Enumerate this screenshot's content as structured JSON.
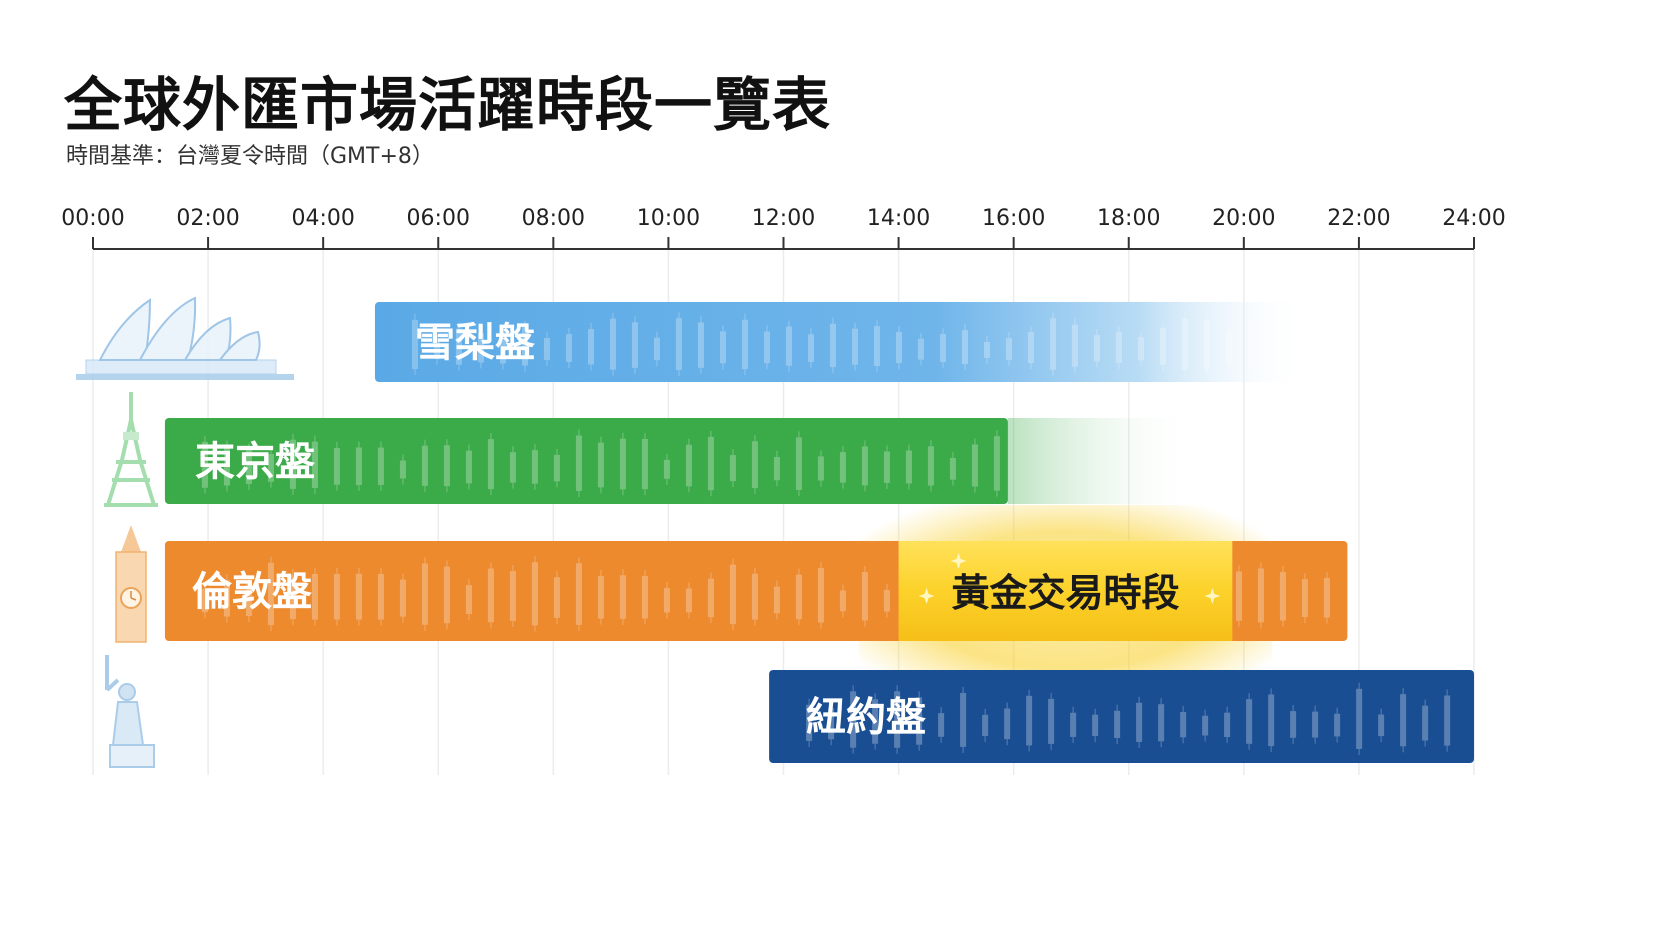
{
  "page": {
    "title": "全球外匯市場活躍時段一覽表",
    "subtitle": "時間基準：台灣夏令時間（GMT+8）"
  },
  "chart_data": {
    "type": "bar",
    "orientation": "horizontal-range",
    "title": "全球外匯市場活躍時段一覽表",
    "subtitle": "時間基準：台灣夏令時間（GMT+8）",
    "xlim": [
      0,
      24
    ],
    "x_ticks": [
      "00:00",
      "02:00",
      "04:00",
      "06:00",
      "08:00",
      "10:00",
      "12:00",
      "14:00",
      "16:00",
      "18:00",
      "20:00",
      "22:00",
      "24:00"
    ],
    "grid": true,
    "series": [
      {
        "name": "雪梨盤",
        "start": 4.9,
        "end": 21.1,
        "color": "#5aa9e6",
        "icon": "sydney-opera-house-icon"
      },
      {
        "name": "東京盤",
        "start": 1.25,
        "end": 15.9,
        "color": "#3bab4a",
        "icon": "tokyo-tower-icon"
      },
      {
        "name": "倫敦盤",
        "start": 1.25,
        "end": 21.8,
        "color": "#ee8a2e",
        "icon": "big-ben-icon"
      },
      {
        "name": "紐約盤",
        "start": 11.75,
        "end": 24.0,
        "color": "#1a4e93",
        "icon": "statue-of-liberty-icon"
      }
    ],
    "highlight": {
      "label": "黃金交易時段",
      "start": 14.0,
      "end": 19.8,
      "color": "#f8cd1f"
    }
  }
}
